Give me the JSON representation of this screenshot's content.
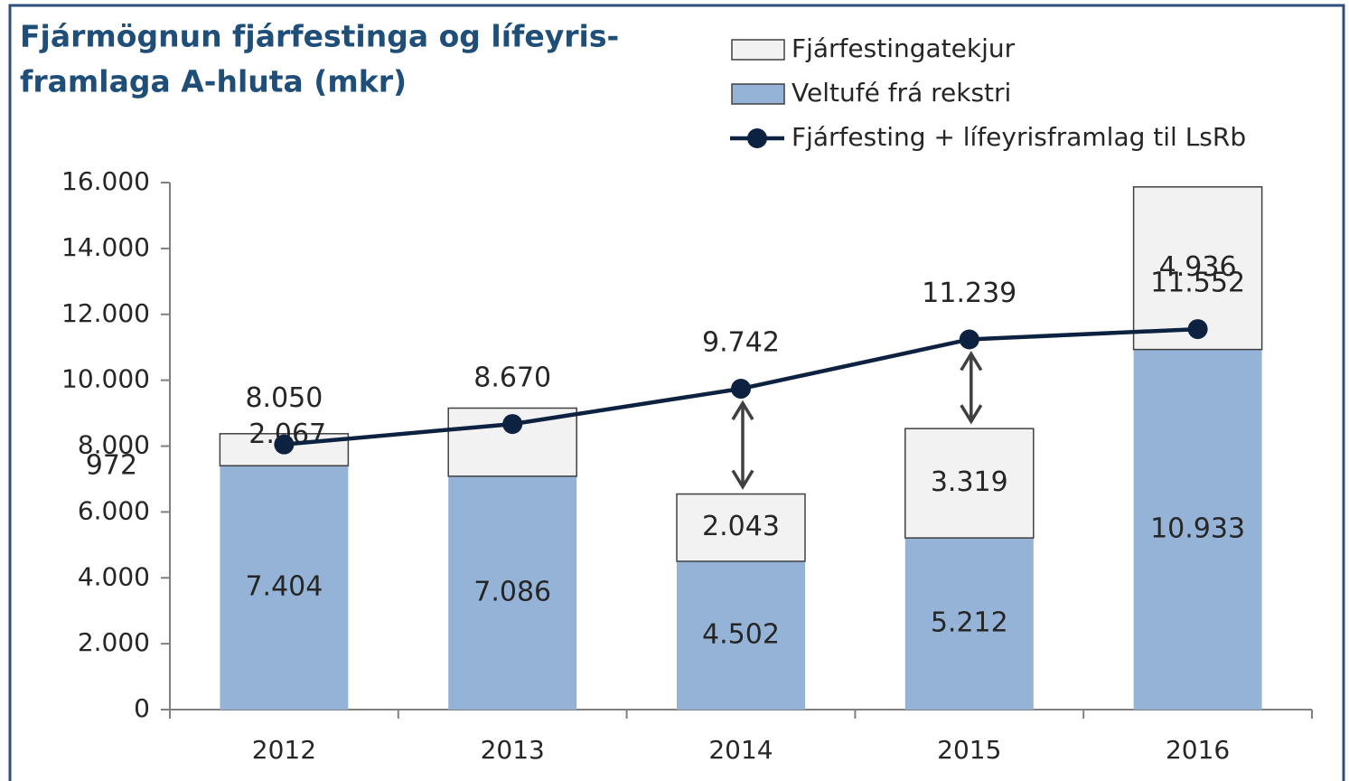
{
  "chart_data": {
    "type": "stacked-bar-line",
    "title": [
      "Fjármögnun fjárfestinga og lífeyris-",
      "framlaga A-hluta (mkr)"
    ],
    "categories": [
      "2012",
      "2013",
      "2014",
      "2015",
      "2016"
    ],
    "series": [
      {
        "name": "Veltufé frá rekstri",
        "color": "#95b3d7",
        "kind": "bar",
        "values": [
          7404,
          7086,
          4502,
          5212,
          10933
        ],
        "value_labels": [
          "7.404",
          "7.086",
          "4.502",
          "5.212",
          "10.933"
        ]
      },
      {
        "name": "Fjárfestingatekjur",
        "color": "#f2f2f2",
        "kind": "bar",
        "values": [
          972,
          2067,
          2043,
          3319,
          4936
        ],
        "value_labels": [
          "972",
          "2.067",
          "2.043",
          "3.319",
          "4.936"
        ]
      },
      {
        "name": "Fjárfesting + lífeyrisframlag til LsRb",
        "color": "#0d2240",
        "kind": "line",
        "values": [
          8050,
          8670,
          9742,
          11239,
          11552
        ],
        "value_labels": [
          "8.050",
          "8.670",
          "9.742",
          "11.239",
          "11.552"
        ]
      }
    ],
    "ylim": [
      0,
      16000
    ],
    "yticks": [
      0,
      {
        "value": 2000,
        "label": "2.000"
      },
      {
        "value": 4000,
        "label": "4.000"
      },
      {
        "value": 6000,
        "label": "6.000"
      },
      {
        "value": 8000,
        "label": "8.000"
      },
      {
        "value": 10000,
        "label": "10.000"
      },
      {
        "value": 12000,
        "label": "12.000"
      },
      {
        "value": 14000,
        "label": "14.000"
      },
      {
        "value": 16000,
        "label": "16.000"
      }
    ],
    "grid": false
  }
}
